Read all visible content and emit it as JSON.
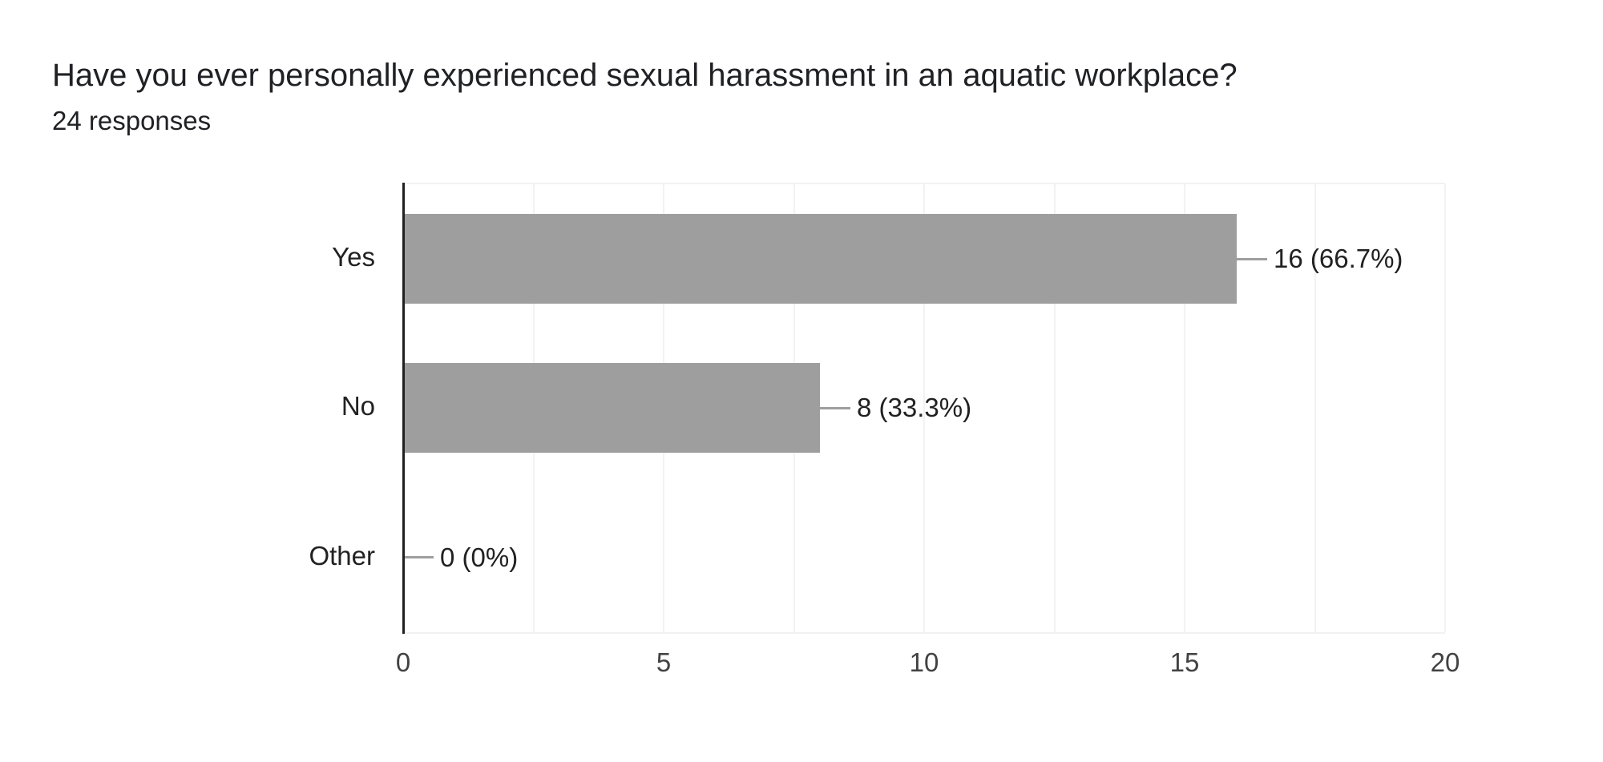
{
  "chart_data": {
    "type": "bar",
    "orientation": "horizontal",
    "title": "Have you ever personally experienced sexual harassment in an aquatic workplace?",
    "subtitle": "24 responses",
    "categories": [
      "Yes",
      "No",
      "Other"
    ],
    "values": [
      16,
      8,
      0
    ],
    "value_labels": [
      "16 (66.7%)",
      "8 (33.3%)",
      "0 (0%)"
    ],
    "percentages": [
      66.7,
      33.3,
      0
    ],
    "total_responses": 24,
    "xlim": [
      0,
      20
    ],
    "x_ticks": [
      0,
      5,
      10,
      15,
      20
    ],
    "x_minor_step": 2.5,
    "grid": "vertical minor gridlines every 2.5 units, light gray",
    "legend_position": "none",
    "colors": {
      "bar": "#9e9e9e",
      "axis_line": "#212121",
      "gridline": "#f2f2f2",
      "title_text": "#202124",
      "tick_text": "#424242",
      "value_text": "#212121",
      "connector": "#9e9e9e",
      "background": "#ffffff"
    }
  }
}
